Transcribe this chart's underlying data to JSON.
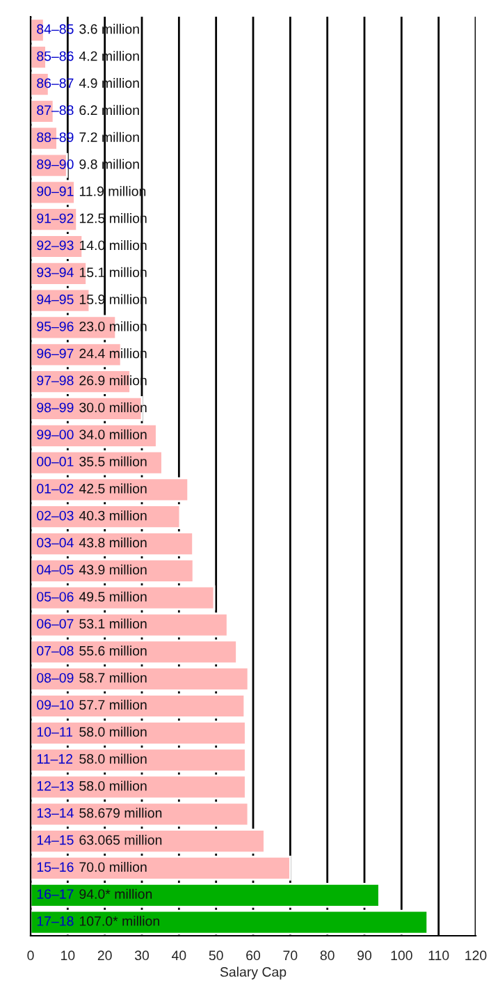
{
  "chart_data": {
    "type": "bar",
    "orientation": "horizontal",
    "xlabel": "Salary Cap",
    "categories": [
      "84–85",
      "85–86",
      "86–87",
      "87–88",
      "88–89",
      "89–90",
      "90–91",
      "91–92",
      "92–93",
      "93–94",
      "94–95",
      "95–96",
      "96–97",
      "97–98",
      "98–99",
      "99–00",
      "00–01",
      "01–02",
      "02–03",
      "03–04",
      "04–05",
      "05–06",
      "06–07",
      "07–08",
      "08–09",
      "09–10",
      "10–11",
      "11–12",
      "12–13",
      "13–14",
      "14–15",
      "15–16",
      "16–17",
      "17–18"
    ],
    "values": [
      3.6,
      4.2,
      4.9,
      6.2,
      7.2,
      9.8,
      11.9,
      12.5,
      14.0,
      15.1,
      15.9,
      23.0,
      24.4,
      26.9,
      30.0,
      34.0,
      35.5,
      42.5,
      40.3,
      43.8,
      43.9,
      49.5,
      53.1,
      55.6,
      58.7,
      57.7,
      58.0,
      58.0,
      58.0,
      58.679,
      63.065,
      70.0,
      94.0,
      107.0
    ],
    "value_labels": [
      "3.6 million",
      "4.2 million",
      "4.9 million",
      "6.2 million",
      "7.2 million",
      "9.8 million",
      "11.9 million",
      "12.5 million",
      "14.0 million",
      "15.1 million",
      "15.9 million",
      "23.0 million",
      "24.4 million",
      "26.9 million",
      "30.0 million",
      "34.0 million",
      "35.5 million",
      "42.5 million",
      "40.3 million",
      "43.8 million",
      "43.9 million",
      "49.5 million",
      "53.1 million",
      "55.6 million",
      "58.7 million",
      "57.7 million",
      "58.0 million",
      "58.0 million",
      "58.0 million",
      "58.679 million",
      "63.065 million",
      "70.0 million",
      "94.0* million",
      "107.0* million"
    ],
    "colors": [
      "#ffb6b6",
      "#ffb6b6",
      "#ffb6b6",
      "#ffb6b6",
      "#ffb6b6",
      "#ffb6b6",
      "#ffb6b6",
      "#ffb6b6",
      "#ffb6b6",
      "#ffb6b6",
      "#ffb6b6",
      "#ffb6b6",
      "#ffb6b6",
      "#ffb6b6",
      "#ffb6b6",
      "#ffb6b6",
      "#ffb6b6",
      "#ffb6b6",
      "#ffb6b6",
      "#ffb6b6",
      "#ffb6b6",
      "#ffb6b6",
      "#ffb6b6",
      "#ffb6b6",
      "#ffb6b6",
      "#ffb6b6",
      "#ffb6b6",
      "#ffb6b6",
      "#ffb6b6",
      "#ffb6b6",
      "#ffb6b6",
      "#ffb6b6",
      "#00b000",
      "#00b000"
    ],
    "xlim": [
      0,
      120
    ],
    "xticks": [
      0,
      10,
      20,
      30,
      40,
      50,
      60,
      70,
      80,
      90,
      100,
      110,
      120
    ],
    "grid": "x"
  }
}
